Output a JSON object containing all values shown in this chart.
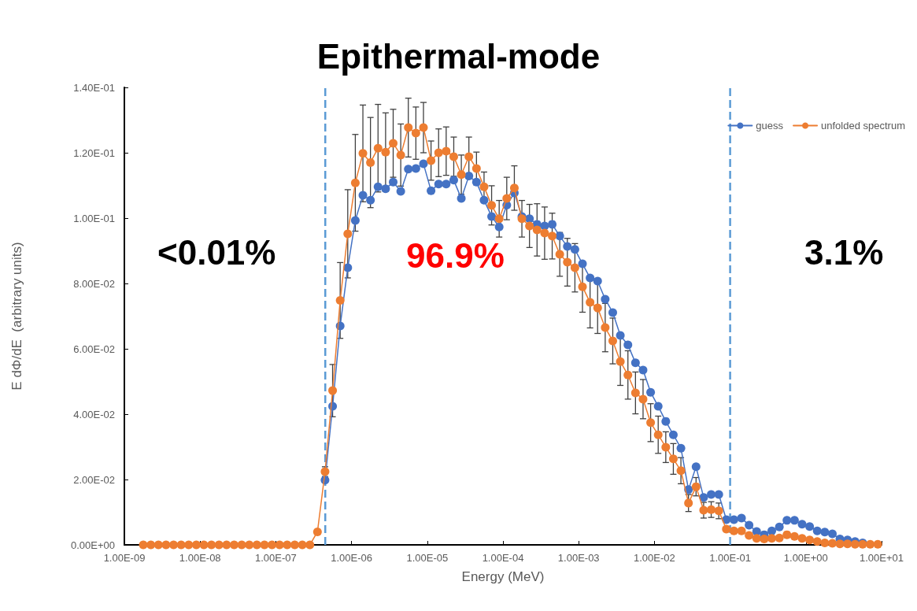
{
  "chart_data": {
    "type": "line",
    "title": "Epithermal-mode",
    "xlabel": "Energy (MeV)",
    "ylabel": "E dΦ/dE  (arbitrary units)",
    "x": [
      1.778e-09,
      2.239e-09,
      2.818e-09,
      3.548e-09,
      4.467e-09,
      5.623e-09,
      7.079e-09,
      8.913e-09,
      1.122e-08,
      1.413e-08,
      1.778e-08,
      2.239e-08,
      2.818e-08,
      3.548e-08,
      4.467e-08,
      5.623e-08,
      7.079e-08,
      8.913e-08,
      1.122e-07,
      1.413e-07,
      1.778e-07,
      2.239e-07,
      2.818e-07,
      3.548e-07,
      4.467e-07,
      5.623e-07,
      7.079e-07,
      8.913e-07,
      1.122e-06,
      1.413e-06,
      1.778e-06,
      2.239e-06,
      2.818e-06,
      3.548e-06,
      4.467e-06,
      5.623e-06,
      7.079e-06,
      8.913e-06,
      1.122e-05,
      1.413e-05,
      1.778e-05,
      2.239e-05,
      2.818e-05,
      3.548e-05,
      4.467e-05,
      5.623e-05,
      7.079e-05,
      8.913e-05,
      0.0001122,
      0.0001413,
      0.0001778,
      0.0002239,
      0.0002818,
      0.0003548,
      0.0004467,
      0.0005623,
      0.0007079,
      0.0008913,
      0.001122,
      0.001413,
      0.001778,
      0.002239,
      0.002818,
      0.003548,
      0.004467,
      0.005623,
      0.007079,
      0.008913,
      0.01122,
      0.01413,
      0.01778,
      0.02239,
      0.02818,
      0.03548,
      0.04467,
      0.05623,
      0.07079,
      0.08913,
      0.1122,
      0.1413,
      0.1778,
      0.2239,
      0.2818,
      0.3548,
      0.4467,
      0.5623,
      0.7079,
      0.8913,
      1.122,
      1.413,
      1.778,
      2.239,
      2.818,
      3.548,
      4.467,
      5.623,
      7.079,
      8.913
    ],
    "series": [
      {
        "name": "guess",
        "color": "#4472c4",
        "values": [
          null,
          null,
          null,
          null,
          null,
          null,
          null,
          null,
          null,
          null,
          null,
          null,
          null,
          null,
          null,
          null,
          null,
          null,
          null,
          null,
          null,
          null,
          null,
          null,
          0.0198,
          0.0424,
          0.067,
          0.0848,
          0.0993,
          0.107,
          0.1055,
          0.1096,
          0.109,
          0.111,
          0.1082,
          0.115,
          0.1152,
          0.1166,
          0.1084,
          0.1104,
          0.1104,
          0.1116,
          0.106,
          0.1129,
          0.111,
          0.1055,
          0.1005,
          0.0973,
          0.104,
          0.1077,
          0.1005,
          0.0998,
          0.0981,
          0.0976,
          0.0981,
          0.0945,
          0.0913,
          0.0904,
          0.086,
          0.0817,
          0.0807,
          0.0752,
          0.0711,
          0.0641,
          0.0612,
          0.0557,
          0.0535,
          0.0467,
          0.0424,
          0.0378,
          0.0337,
          0.0296,
          0.0169,
          0.0239,
          0.0145,
          0.0154,
          0.0154,
          0.0077,
          0.0077,
          0.0082,
          0.006,
          0.0041,
          0.0031,
          0.0043,
          0.0055,
          0.0075,
          0.0075,
          0.0063,
          0.0056,
          0.0043,
          0.0039,
          0.0034,
          0.0018,
          0.0015,
          0.001,
          0.0006,
          null,
          null
        ]
      },
      {
        "name": "unfolded spectrum",
        "color": "#ed7d31",
        "values": [
          0,
          0,
          0,
          0,
          0,
          0,
          0,
          0,
          0,
          0,
          0,
          0,
          0,
          0,
          0,
          0,
          0,
          0,
          0,
          0,
          0,
          0,
          0,
          0.004,
          0.0224,
          0.0472,
          0.0748,
          0.0952,
          0.1108,
          0.1198,
          0.117,
          0.1214,
          0.1202,
          0.1229,
          0.1193,
          0.1277,
          0.126,
          0.1277,
          0.1176,
          0.12,
          0.1205,
          0.1188,
          0.1133,
          0.1188,
          0.1152,
          0.1096,
          0.1039,
          0.0998,
          0.106,
          0.1092,
          0.0998,
          0.0976,
          0.0964,
          0.0954,
          0.0945,
          0.0889,
          0.0865,
          0.0848,
          0.079,
          0.0742,
          0.0725,
          0.0665,
          0.0624,
          0.0561,
          0.052,
          0.0465,
          0.0446,
          0.0374,
          0.0337,
          0.0299,
          0.0263,
          0.0227,
          0.0128,
          0.0178,
          0.0106,
          0.0108,
          0.0104,
          0.0048,
          0.0043,
          0.0043,
          0.0029,
          0.002,
          0.0018,
          0.002,
          0.0021,
          0.0031,
          0.0026,
          0.002,
          0.0015,
          0.001,
          0.0006,
          0.0005,
          0.0003,
          0.0003,
          0.0002,
          0.0002,
          0.0002,
          0.0002
        ],
        "errors": [
          null,
          null,
          null,
          null,
          null,
          null,
          null,
          null,
          null,
          null,
          null,
          null,
          null,
          null,
          null,
          null,
          null,
          null,
          null,
          null,
          null,
          null,
          null,
          null,
          0.0015,
          0.008,
          0.0116,
          0.0135,
          0.0148,
          0.0148,
          0.0138,
          0.0134,
          0.012,
          0.0104,
          0.0095,
          0.009,
          0.008,
          0.0077,
          0.006,
          0.0073,
          0.0074,
          0.006,
          0.006,
          0.006,
          0.005,
          0.0045,
          0.006,
          0.0056,
          0.0065,
          0.0068,
          0.0056,
          0.0066,
          0.008,
          0.008,
          0.007,
          0.0067,
          0.0073,
          0.0074,
          0.0078,
          0.0078,
          0.0078,
          0.0074,
          0.007,
          0.0073,
          0.0074,
          0.0064,
          0.006,
          0.0058,
          0.0057,
          0.0047,
          0.0047,
          0.004,
          0.0026,
          0.0028,
          0.0024,
          0.0024,
          0.0024,
          null,
          null,
          null,
          null,
          null,
          null,
          null,
          null,
          null,
          null,
          null,
          null,
          null,
          null,
          null,
          null,
          null,
          null,
          null,
          null,
          null
        ]
      }
    ],
    "xlim": [
      1e-09,
      10
    ],
    "xticks": [
      {
        "value": 1e-09,
        "label": "1.00E-09"
      },
      {
        "value": 1e-08,
        "label": "1.00E-08"
      },
      {
        "value": 1e-07,
        "label": "1.00E-07"
      },
      {
        "value": 1e-06,
        "label": "1.00E-06"
      },
      {
        "value": 1e-05,
        "label": "1.00E-05"
      },
      {
        "value": 0.0001,
        "label": "1.00E-04"
      },
      {
        "value": 0.001,
        "label": "1.00E-03"
      },
      {
        "value": 0.01,
        "label": "1.00E-02"
      },
      {
        "value": 0.1,
        "label": "1.00E-01"
      },
      {
        "value": 1,
        "label": "1.00E+00"
      },
      {
        "value": 10,
        "label": "1.00E+01"
      }
    ],
    "ylim": [
      0,
      0.14
    ],
    "yticks": [
      {
        "value": 0,
        "label": "0.00E+00"
      },
      {
        "value": 0.02,
        "label": "2.00E-02"
      },
      {
        "value": 0.04,
        "label": "4.00E-02"
      },
      {
        "value": 0.06,
        "label": "6.00E-02"
      },
      {
        "value": 0.08,
        "label": "8.00E-02"
      },
      {
        "value": 0.1,
        "label": "1.00E-01"
      },
      {
        "value": 0.12,
        "label": "1.20E-01"
      },
      {
        "value": 0.14,
        "label": "1.40E-01"
      }
    ],
    "log": "x",
    "marker": "circle",
    "line_style": "solid",
    "legend": "top right",
    "ref_lines": [
      {
        "axis": "x",
        "value": 4.5e-07,
        "color": "#5b9bd5",
        "line_style": "dashed"
      },
      {
        "axis": "x",
        "value": 0.1,
        "color": "#5b9bd5",
        "line_style": "dashed"
      }
    ],
    "annotations": [
      "<0.01%",
      "96.9%",
      "3.1%"
    ]
  }
}
